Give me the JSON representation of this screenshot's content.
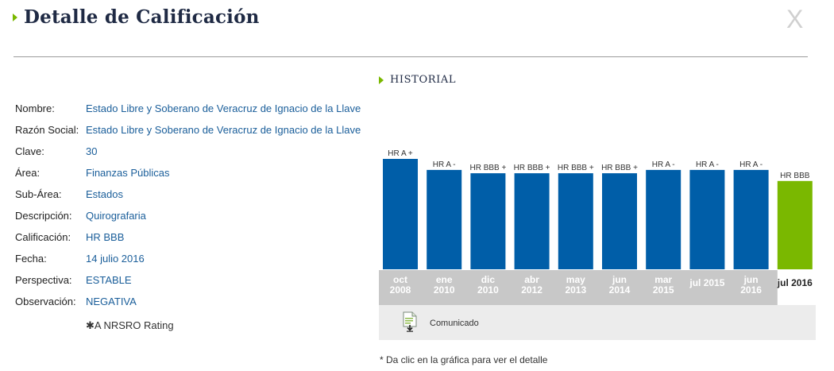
{
  "header": {
    "title": "Detalle de Calificación",
    "close_label": "X"
  },
  "details": [
    {
      "label": "Nombre:",
      "value": "Estado Libre y Soberano de Veracruz de Ignacio de la Llave"
    },
    {
      "label": "Razón Social:",
      "value": "Estado Libre y Soberano de Veracruz de Ignacio de la Llave"
    },
    {
      "label": "Clave:",
      "value": "30"
    },
    {
      "label": "Área:",
      "value": "Finanzas Públicas"
    },
    {
      "label": "Sub-Área:",
      "value": "Estados"
    },
    {
      "label": "Descripción:",
      "value": "Quirografaria"
    },
    {
      "label": "Calificación:",
      "value": "HR BBB"
    },
    {
      "label": "Fecha:",
      "value": "14 julio 2016"
    },
    {
      "label": "Perspectiva:",
      "value": "ESTABLE"
    },
    {
      "label": "Observación:",
      "value": "NEGATIVA"
    }
  ],
  "nrsro_note": "✱A NRSRO Rating",
  "historial": {
    "title": "HISTORIAL"
  },
  "chart_data": {
    "type": "bar",
    "categories": [
      [
        "oct",
        "2008"
      ],
      [
        "ene",
        "2010"
      ],
      [
        "dic",
        "2010"
      ],
      [
        "abr",
        "2012"
      ],
      [
        "may",
        "2013"
      ],
      [
        "jun",
        "2014"
      ],
      [
        "mar",
        "2015"
      ],
      [
        "jul 2015"
      ],
      [
        "jun",
        "2016"
      ],
      [
        "jul 2016"
      ]
    ],
    "ratings": [
      "HR A +",
      "HR A -",
      "HR BBB +",
      "HR BBB +",
      "HR BBB +",
      "HR BBB +",
      "HR A -",
      "HR A -",
      "HR A -",
      "HR BBB"
    ],
    "values": [
      10,
      9,
      8.7,
      8.7,
      8.7,
      8.7,
      9,
      9,
      9,
      8
    ],
    "selected_index": 9,
    "colors": {
      "bar": "#005ea8",
      "selected": "#7ab800",
      "axis_bg": "#c8c8c8",
      "axis_text": "#ffffff",
      "selected_text": "#222222"
    }
  },
  "comunicado": {
    "label": "Comunicado",
    "icon": "document-download-icon"
  },
  "footnote": "* Da clic en la gráfica para ver el detalle"
}
